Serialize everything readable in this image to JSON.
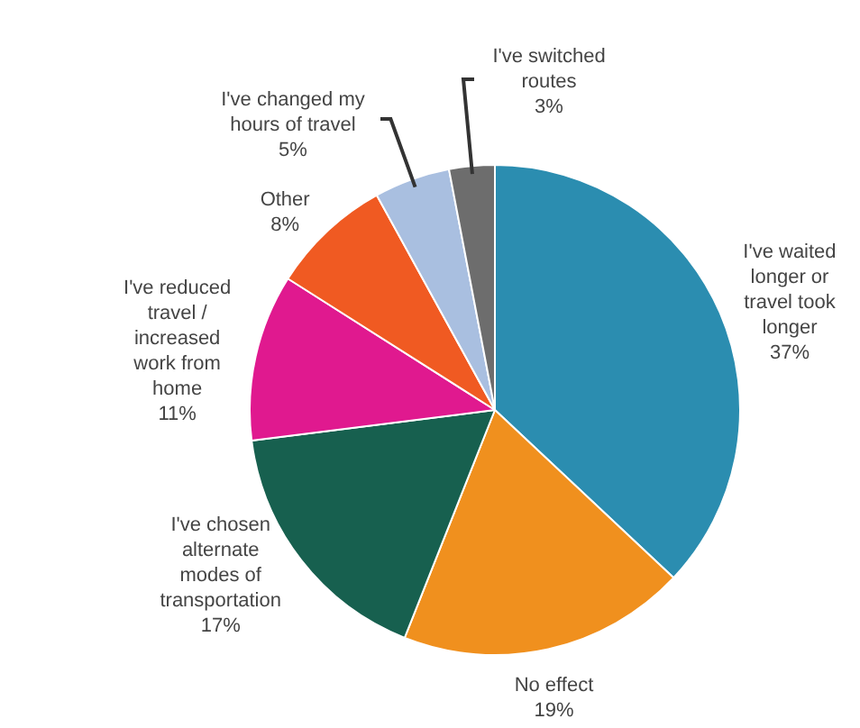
{
  "chart_data": {
    "type": "pie",
    "categories": [
      "I've waited longer or travel took longer",
      "No effect",
      "I've chosen alternate modes of transportation",
      "I've reduced travel / increased work from home",
      "Other",
      "I've changed my hours of travel",
      "I've switched routes"
    ],
    "values": [
      37,
      19,
      17,
      11,
      8,
      5,
      3
    ],
    "colors": [
      "#2b8db0",
      "#f0901e",
      "#17604f",
      "#e0198f",
      "#f05a22",
      "#a9bfe0",
      "#6d6d6d"
    ],
    "value_labels": [
      "37%",
      "19%",
      "17%",
      "11%",
      "8%",
      "5%",
      "3%"
    ],
    "legend": false
  }
}
